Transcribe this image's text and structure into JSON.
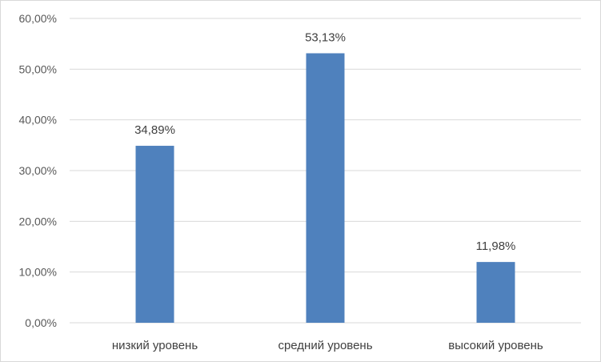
{
  "chart_data": {
    "type": "bar",
    "title": "",
    "xlabel": "",
    "ylabel": "",
    "categories": [
      "низкий уровень",
      "средний уровень",
      "высокий уровень"
    ],
    "values": [
      34.89,
      53.13,
      11.98
    ],
    "data_labels": [
      "34,89%",
      "53,13%",
      "11,98%"
    ],
    "ylim": [
      0,
      60
    ],
    "y_ticks": [
      0,
      10,
      20,
      30,
      40,
      50,
      60
    ],
    "y_tick_labels": [
      "0,00%",
      "10,00%",
      "20,00%",
      "30,00%",
      "40,00%",
      "50,00%",
      "60,00%"
    ],
    "grid": true,
    "legend": "none",
    "colors": {
      "bar": "#4f81bd",
      "grid": "#d9d9d9",
      "axis": "#d9d9d9"
    }
  }
}
